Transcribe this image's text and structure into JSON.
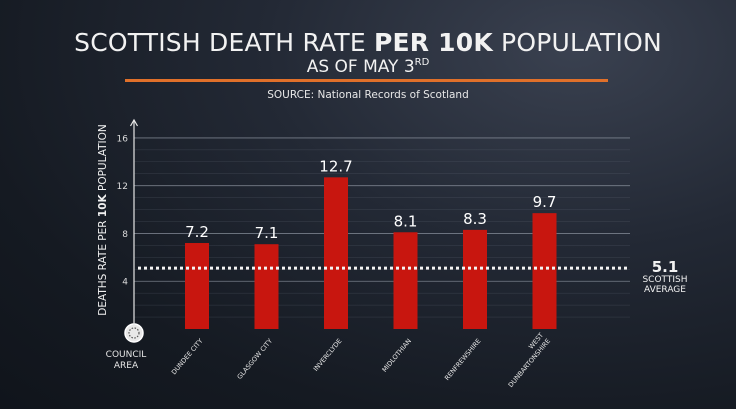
{
  "header": {
    "title_regular_1": "SCOTTISH DEATH RATE ",
    "title_bold": "PER 10K",
    "title_regular_2": " POPULATION",
    "subtitle": "AS OF MAY 3",
    "subtitle_sup": "RD",
    "source": "SOURCE: National Records of Scotland"
  },
  "axis": {
    "ylabel_1": "DEATHS RATE PER ",
    "ylabel_bold": "10K",
    "ylabel_2": " POPULATION",
    "x_corner_label_1": "COUNCIL",
    "x_corner_label_2": "AREA"
  },
  "average": {
    "value": "5.1",
    "label_1": "SCOTTISH",
    "label_2": "AVERAGE"
  },
  "colors": {
    "bar": "#c8160f",
    "accent_rule": "#e0702a",
    "grid": "#8d94a0"
  },
  "chart_data": {
    "type": "bar",
    "title": "SCOTTISH DEATH RATE PER 10K POPULATION",
    "subtitle": "AS OF MAY 3RD",
    "xlabel": "COUNCIL AREA",
    "ylabel": "DEATHS RATE PER 10K POPULATION",
    "categories": [
      "DUNDEE CITY",
      "GLASGOW CITY",
      "INVERCLYDE",
      "MIDLOTHIAN",
      "RENFREWSHIRE",
      "WEST DUNBARTONSHIRE"
    ],
    "values": [
      7.2,
      7.1,
      12.7,
      8.1,
      8.3,
      9.7
    ],
    "value_labels": [
      "7.2",
      "7.1",
      "12.7",
      "8.1",
      "8.3",
      "9.7"
    ],
    "yticks": [
      4,
      8,
      12,
      16
    ],
    "ylim": [
      0,
      17.5
    ],
    "reference_line": {
      "value": 5.1,
      "label": "SCOTTISH AVERAGE",
      "style": "dotted"
    },
    "grid": true
  }
}
